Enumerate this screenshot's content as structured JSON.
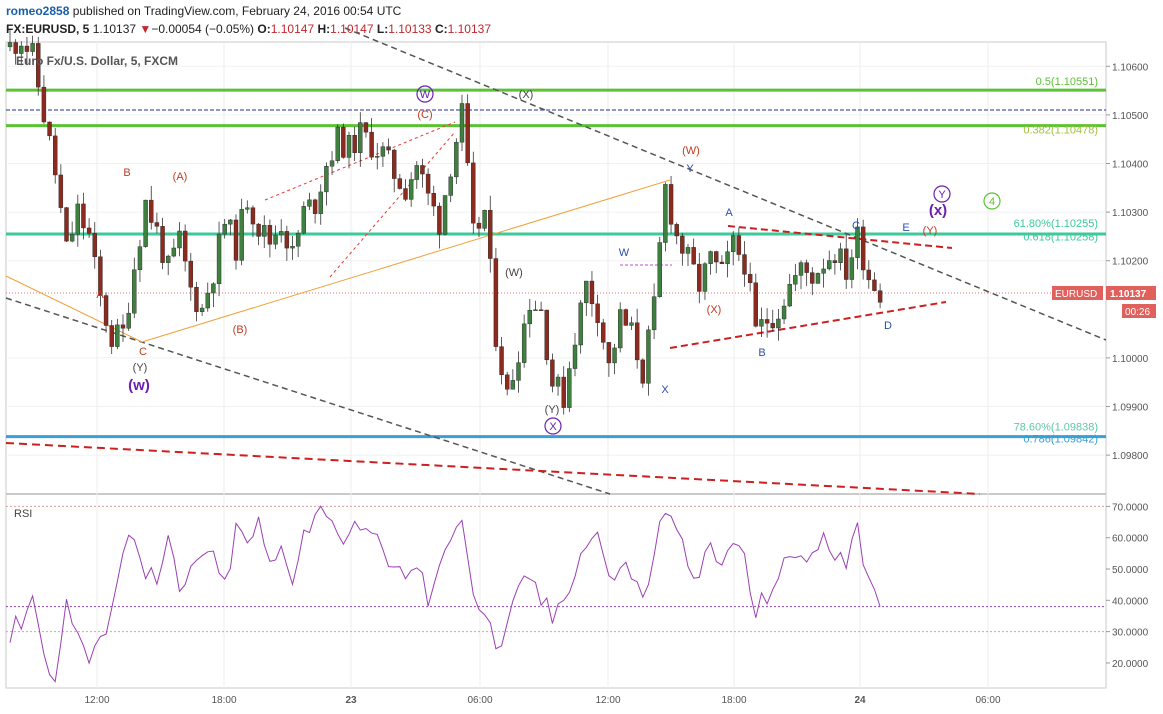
{
  "header": {
    "user": "romeo2858",
    "published_text": " published on TradingView.com, February 24, 2016 00:54 UTC",
    "symbol": "FX:EURUSD, 5",
    "last": "1.10137",
    "down_marker": "▼",
    "change": "−0.00054 (−0.05%)",
    "o_label": "O:",
    "o": "1.10147",
    "h_label": "H:",
    "h": "1.10147",
    "l_label": "L:",
    "l": "1.10133",
    "c_label": "C:",
    "c": "1.10137"
  },
  "pane": {
    "title": "Euro Fx/U.S. Dollar, 5, FXCM",
    "rsi_label": "RSI",
    "badge_symbol": "EURUSD",
    "badge_price": "1.10137",
    "badge_timer": "00:26"
  },
  "colors": {
    "up": "#3f7f3f",
    "down": "#8b2a1f",
    "fib_green": "#5bc236",
    "fib_teal": "#3ec998",
    "fib_blue": "#3a9fd6",
    "rsi": "#9b3fb5",
    "wave_red": "#c23b22",
    "wave_purple": "#6a1fb0",
    "wave_blue": "#2b4fa8"
  },
  "chart_data": [
    {
      "type": "candlestick",
      "title": "Euro Fx/U.S. Dollar, 5, FXCM",
      "x_ticks": [
        "12:00",
        "18:00",
        "23",
        "06:00",
        "12:00",
        "18:00",
        "24",
        "06:00"
      ],
      "y_ticks": [
        "1.10600",
        "1.10500",
        "1.10400",
        "1.10300",
        "1.10200",
        "1.10000",
        "1.09900",
        "1.09800"
      ],
      "ylim": [
        1.0972,
        1.1065
      ],
      "price_path": [
        [
          0,
          1.1064
        ],
        [
          2,
          1.1066
        ],
        [
          4,
          1.1062
        ],
        [
          6,
          1.105
        ],
        [
          8,
          1.1038
        ],
        [
          10,
          1.1022
        ],
        [
          12,
          1.103
        ],
        [
          14,
          1.1025
        ],
        [
          16,
          1.1012
        ],
        [
          18,
          1.1004
        ],
        [
          20,
          1.1005
        ],
        [
          22,
          1.1019
        ],
        [
          24,
          1.1032
        ],
        [
          26,
          1.1026
        ],
        [
          28,
          1.1018
        ],
        [
          30,
          1.1024
        ],
        [
          32,
          1.1014
        ],
        [
          34,
          1.101
        ],
        [
          36,
          1.1018
        ],
        [
          38,
          1.1028
        ],
        [
          40,
          1.1023
        ],
        [
          42,
          1.1033
        ],
        [
          44,
          1.1027
        ],
        [
          46,
          1.1024
        ],
        [
          48,
          1.1028
        ],
        [
          50,
          1.1021
        ],
        [
          52,
          1.103
        ],
        [
          54,
          1.1032
        ],
        [
          56,
          1.104
        ],
        [
          58,
          1.1045
        ],
        [
          60,
          1.1043
        ],
        [
          62,
          1.1046
        ],
        [
          64,
          1.1044
        ],
        [
          66,
          1.1042
        ],
        [
          68,
          1.1038
        ],
        [
          70,
          1.1035
        ],
        [
          72,
          1.104
        ],
        [
          74,
          1.1033
        ],
        [
          76,
          1.1028
        ],
        [
          78,
          1.104
        ],
        [
          80,
          1.105
        ],
        [
          82,
          1.1025
        ],
        [
          84,
          1.103
        ],
        [
          86,
          1.1005
        ],
        [
          88,
          1.0992
        ],
        [
          90,
          1.1002
        ],
        [
          92,
          1.1012
        ],
        [
          94,
          1.101
        ],
        [
          96,
          1.0995
        ],
        [
          98,
          1.0992
        ],
        [
          100,
          1.1005
        ],
        [
          102,
          1.1015
        ],
        [
          104,
          1.101
        ],
        [
          106,
          1.0998
        ],
        [
          108,
          1.1008
        ],
        [
          110,
          1.1005
        ],
        [
          112,
          1.0997
        ],
        [
          114,
          1.101
        ],
        [
          116,
          1.1035
        ],
        [
          118,
          1.1025
        ],
        [
          120,
          1.102
        ],
        [
          122,
          1.1015
        ],
        [
          124,
          1.102
        ],
        [
          126,
          1.1017
        ],
        [
          128,
          1.1023
        ],
        [
          130,
          1.102
        ],
        [
          132,
          1.1005
        ],
        [
          134,
          1.1008
        ],
        [
          136,
          1.101
        ],
        [
          138,
          1.1015
        ],
        [
          140,
          1.1018
        ],
        [
          142,
          1.1017
        ],
        [
          144,
          1.102
        ],
        [
          146,
          1.1022
        ],
        [
          148,
          1.1018
        ],
        [
          150,
          1.1025
        ],
        [
          152,
          1.1017
        ],
        [
          154,
          1.1014
        ]
      ],
      "levels": [
        {
          "label": "0.5(1.10551)",
          "value": 1.10551
        },
        {
          "label": "0.382(1.10478)",
          "value": 1.10478
        },
        {
          "label": "61.80%(1.10255)",
          "value": 1.10255
        },
        {
          "label": "0.618(1.10258)",
          "value": 1.10258
        },
        {
          "label": "78.60%(1.09838)",
          "value": 1.09838
        },
        {
          "label": "0.786(1.09842)",
          "value": 1.09842
        }
      ],
      "wave_labels": [
        "B",
        "(A)",
        "A",
        "C",
        "(B)",
        "(Y)",
        "(w)",
        "(C)",
        "W",
        "(X)",
        "(W)",
        "(Y)",
        "X",
        "W",
        "Y",
        "X",
        "(W)",
        "A",
        "(X)",
        "B",
        "C",
        "D",
        "E",
        "(Y)",
        "(x)",
        "Y",
        "4"
      ]
    },
    {
      "type": "line",
      "title": "RSI",
      "y_ticks": [
        "70.0000",
        "60.0000",
        "50.0000",
        "40.0000",
        "30.0000",
        "20.0000"
      ],
      "ylim": [
        12,
        73
      ],
      "series": [
        {
          "values": [
            [
              0,
              28
            ],
            [
              2,
              34
            ],
            [
              4,
              42
            ],
            [
              6,
              22
            ],
            [
              8,
              15
            ],
            [
              10,
              38
            ],
            [
              12,
              30
            ],
            [
              14,
              20
            ],
            [
              16,
              25
            ],
            [
              18,
              40
            ],
            [
              20,
              55
            ],
            [
              22,
              62
            ],
            [
              24,
              50
            ],
            [
              26,
              45
            ],
            [
              28,
              58
            ],
            [
              30,
              42
            ],
            [
              32,
              48
            ],
            [
              34,
              56
            ],
            [
              36,
              52
            ],
            [
              38,
              44
            ],
            [
              40,
              62
            ],
            [
              42,
              58
            ],
            [
              44,
              64
            ],
            [
              46,
              50
            ],
            [
              48,
              56
            ],
            [
              50,
              48
            ],
            [
              52,
              62
            ],
            [
              54,
              66
            ],
            [
              56,
              70
            ],
            [
              58,
              62
            ],
            [
              60,
              58
            ],
            [
              62,
              66
            ],
            [
              64,
              60
            ],
            [
              66,
              55
            ],
            [
              68,
              52
            ],
            [
              70,
              45
            ],
            [
              72,
              52
            ],
            [
              74,
              40
            ],
            [
              76,
              48
            ],
            [
              78,
              62
            ],
            [
              80,
              68
            ],
            [
              82,
              42
            ],
            [
              84,
              35
            ],
            [
              86,
              25
            ],
            [
              88,
              30
            ],
            [
              90,
              42
            ],
            [
              92,
              48
            ],
            [
              94,
              40
            ],
            [
              96,
              34
            ],
            [
              98,
              42
            ],
            [
              100,
              50
            ],
            [
              102,
              58
            ],
            [
              104,
              62
            ],
            [
              106,
              45
            ],
            [
              108,
              52
            ],
            [
              110,
              48
            ],
            [
              112,
              40
            ],
            [
              114,
              55
            ],
            [
              116,
              70
            ],
            [
              118,
              60
            ],
            [
              120,
              54
            ],
            [
              122,
              48
            ],
            [
              124,
              56
            ],
            [
              126,
              50
            ],
            [
              128,
              60
            ],
            [
              130,
              52
            ],
            [
              132,
              35
            ],
            [
              134,
              42
            ],
            [
              136,
              48
            ],
            [
              138,
              52
            ],
            [
              140,
              56
            ],
            [
              142,
              54
            ],
            [
              144,
              58
            ],
            [
              146,
              56
            ],
            [
              148,
              54
            ],
            [
              150,
              66
            ],
            [
              152,
              44
            ],
            [
              154,
              38
            ]
          ]
        }
      ]
    }
  ]
}
